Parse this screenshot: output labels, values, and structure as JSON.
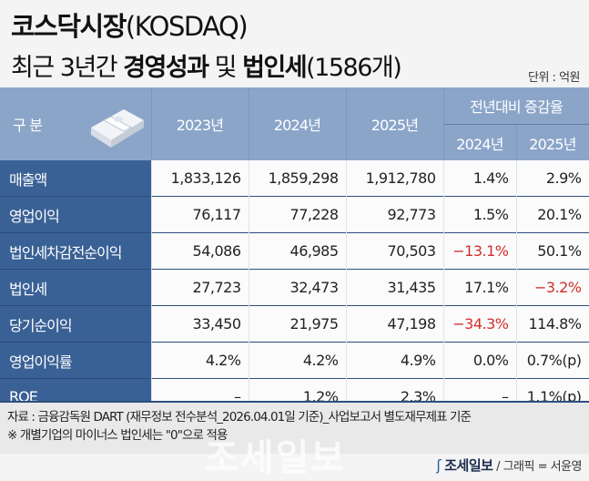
{
  "title": {
    "main_bold": "코스닥시장",
    "main_rest": "(KOSDAQ)",
    "sub_pre": "최근 3년간 ",
    "sub_bold1": "경영성과",
    "sub_mid": " 및 ",
    "sub_bold2": "법인세",
    "sub_post": "(1586개)"
  },
  "unit": "단위 : 억원",
  "colors": {
    "header": "#8ba5c9",
    "label_col": "#3a6195",
    "negative": "#d12f2a"
  },
  "icons": [
    "money-bundle-icon",
    "joseilbo-logo-icon"
  ],
  "chart_data": {
    "type": "table",
    "header": {
      "label": "구 분",
      "years": [
        "2023년",
        "2024년",
        "2025년"
      ],
      "group": "전년대비 증감율",
      "group_years": [
        "2024년",
        "2025년"
      ]
    },
    "rows": [
      {
        "label": "매출액",
        "cells": [
          "1,833,126",
          "1,859,298",
          "1,912,780",
          "1.4%",
          "2.9%"
        ]
      },
      {
        "label": "영업이익",
        "cells": [
          "76,117",
          "77,228",
          "92,773",
          "1.5%",
          "20.1%"
        ]
      },
      {
        "label": "법인세차감전순이익",
        "cells": [
          "54,086",
          "46,985",
          "70,503",
          "-13.1%",
          "50.1%"
        ]
      },
      {
        "label": "법인세",
        "cells": [
          "27,723",
          "32,473",
          "31,435",
          "17.1%",
          "-3.2%"
        ]
      },
      {
        "label": "당기순이익",
        "cells": [
          "33,450",
          "21,975",
          "47,198",
          "-34.3%",
          "114.8%"
        ]
      },
      {
        "label": "영업이익률",
        "cells": [
          "4.2%",
          "4.2%",
          "4.9%",
          "0.0%",
          "0.7%(p)"
        ]
      },
      {
        "label": "ROE",
        "cells": [
          "-",
          "1.2%",
          "2.3%",
          "-",
          "1.1%(p)"
        ]
      }
    ]
  },
  "footer": {
    "source": "자료 : 금융감독원 DART (재무정보 전수분석_2026.04.01일 기준)_사업보고서 별도재무제표 기준",
    "note": "※ 개별기업의 마이너스 법인세는 \"0\"으로 적용",
    "watermark": "조세일보",
    "brand": "조세일보",
    "credit": " / 그래픽 = 서윤영"
  }
}
